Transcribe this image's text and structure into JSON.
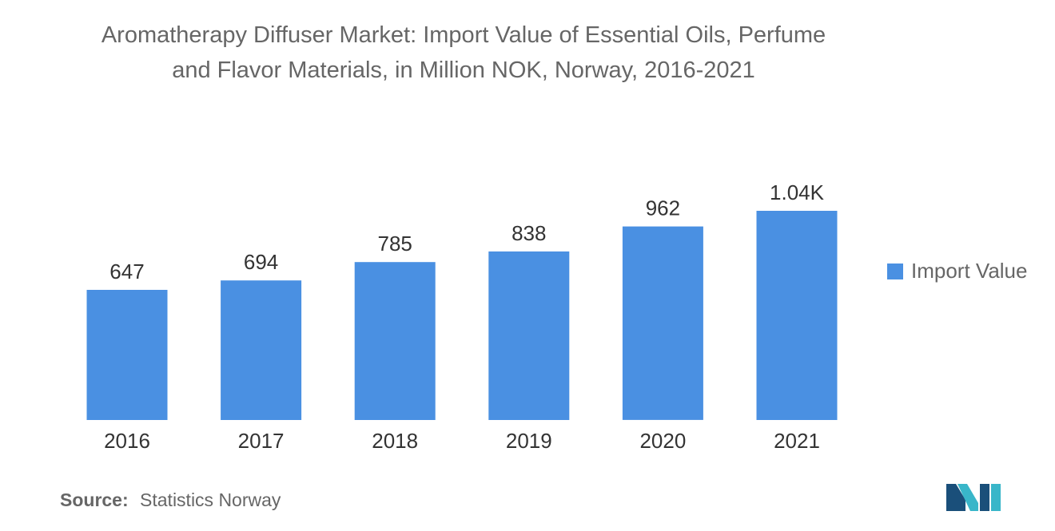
{
  "title_line1": "Aromatherapy Diffuser Market: Import Value of Essential Oils, Perfume",
  "title_line2": "and Flavor Materials, in Million NOK, Norway, 2016-2021",
  "source_label": "Source:",
  "source_text": "Statistics Norway",
  "colors": {
    "bar": "#4a90e2",
    "logo_dark": "#1a4f7a",
    "logo_light": "#39b6c9"
  },
  "logo_name": "company-logo",
  "chart_data": {
    "type": "bar",
    "title": "Aromatherapy Diffuser Market: Import Value of Essential Oils, Perfume and Flavor Materials, in Million NOK, Norway, 2016-2021",
    "categories": [
      "2016",
      "2017",
      "2018",
      "2019",
      "2020",
      "2021"
    ],
    "series": [
      {
        "name": "Import Value",
        "values": [
          647,
          694,
          785,
          838,
          962,
          1040
        ],
        "labels": [
          "647",
          "694",
          "785",
          "838",
          "962",
          "1.04K"
        ]
      }
    ],
    "xlabel": "",
    "ylabel": "",
    "ylim": [
      0,
      1040
    ],
    "grid": false,
    "legend": "right"
  }
}
